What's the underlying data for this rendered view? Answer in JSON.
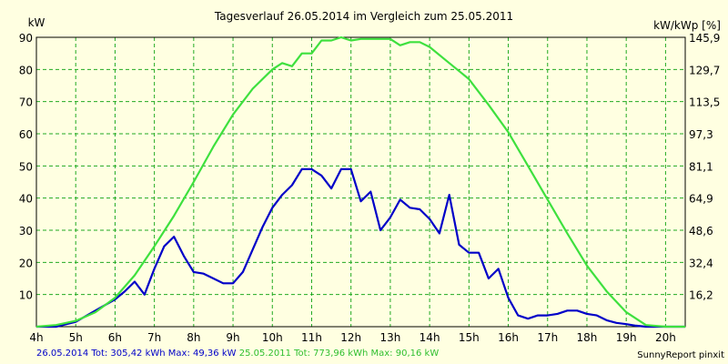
{
  "chart_data": {
    "type": "line",
    "title": "Tagesverlauf 26.05.2014 im Vergleich zum 25.05.2011",
    "ylabel": "kW",
    "y2label": "kW/kWp [%]",
    "xlabel": "",
    "ylim": [
      0,
      90
    ],
    "xlim": [
      4,
      20.5
    ],
    "yticks": [
      10,
      20,
      30,
      40,
      50,
      60,
      70,
      80,
      90
    ],
    "y2ticks": [
      "16,2",
      "32,4",
      "48,6",
      "64,9",
      "81,1",
      "97,3",
      "113,5",
      "129,7",
      "145,9"
    ],
    "xticks": [
      "4h",
      "5h",
      "6h",
      "7h",
      "8h",
      "9h",
      "10h",
      "11h",
      "12h",
      "13h",
      "14h",
      "15h",
      "16h",
      "17h",
      "18h",
      "19h",
      "20h"
    ],
    "grid": true,
    "series": [
      {
        "name": "26.05.2014 Tot: 305,42 kWh Max: 49,36 kW",
        "color": "#0000c8",
        "x": [
          4.0,
          4.5,
          5.0,
          5.5,
          6.0,
          6.25,
          6.5,
          6.75,
          7.0,
          7.25,
          7.5,
          7.75,
          8.0,
          8.25,
          8.5,
          8.75,
          9.0,
          9.25,
          9.5,
          9.75,
          10.0,
          10.25,
          10.5,
          10.75,
          11.0,
          11.25,
          11.5,
          11.75,
          12.0,
          12.25,
          12.5,
          12.75,
          13.0,
          13.25,
          13.5,
          13.75,
          14.0,
          14.25,
          14.5,
          14.75,
          15.0,
          15.25,
          15.5,
          15.75,
          16.0,
          16.25,
          16.5,
          16.75,
          17.0,
          17.25,
          17.5,
          17.75,
          18.0,
          18.25,
          18.5,
          18.75,
          19.0,
          19.25,
          19.5,
          20.0,
          20.5
        ],
        "y": [
          0,
          0,
          1.5,
          5,
          8.5,
          11,
          14,
          10,
          18,
          25,
          28,
          22,
          17,
          16.5,
          15,
          13.5,
          13.5,
          17,
          24,
          31,
          37,
          41,
          44,
          49,
          49,
          47,
          43,
          49,
          49,
          39,
          42,
          30,
          34,
          39.5,
          37,
          36.5,
          33.5,
          29,
          41,
          25.5,
          23,
          23,
          15,
          18,
          9,
          3.5,
          2.5,
          3.5,
          3.5,
          4,
          5,
          5,
          4,
          3.5,
          2,
          1.2,
          0.8,
          0.3,
          0,
          0,
          0
        ]
      },
      {
        "name": "25.05.2011 Tot: 773,96 kWh Max: 90,16 kW",
        "color": "#3ee03e",
        "x": [
          4.0,
          4.5,
          5.0,
          5.5,
          6.0,
          6.5,
          7.0,
          7.5,
          8.0,
          8.5,
          9.0,
          9.5,
          10.0,
          10.25,
          10.5,
          10.75,
          11.0,
          11.25,
          11.5,
          11.75,
          12.0,
          12.25,
          12.5,
          13.0,
          13.25,
          13.5,
          13.75,
          14.0,
          14.5,
          15.0,
          15.5,
          16.0,
          16.5,
          17.0,
          17.5,
          18.0,
          18.5,
          19.0,
          19.5,
          20.0,
          20.5
        ],
        "y": [
          0,
          0.5,
          1.8,
          4.5,
          9,
          16,
          25,
          34.5,
          45,
          56,
          66,
          74,
          80,
          82,
          81,
          85,
          85,
          89,
          89,
          90,
          89,
          89.5,
          89.5,
          89.5,
          87.5,
          88.5,
          88.5,
          87,
          82,
          77,
          69,
          60.5,
          50,
          39.5,
          29,
          19,
          11,
          4.5,
          0.5,
          0,
          0
        ]
      }
    ],
    "footer_credit": "SunnyReport pinxit"
  }
}
